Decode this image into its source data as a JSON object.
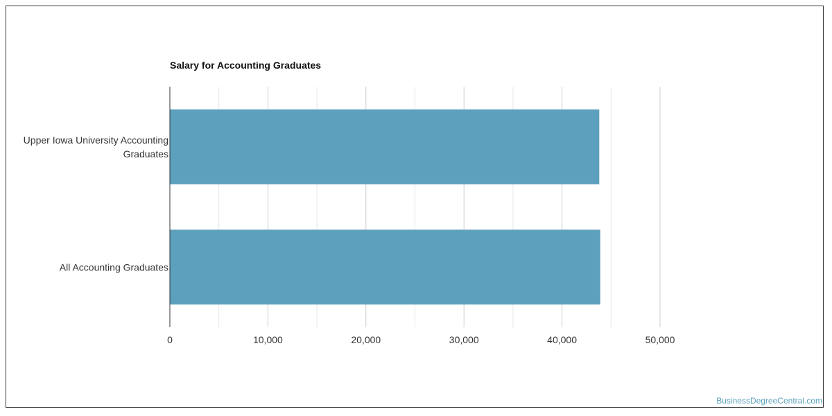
{
  "chart_data": {
    "type": "bar",
    "orientation": "horizontal",
    "title": "Salary for Accounting Graduates",
    "categories": [
      [
        "Upper Iowa University Accounting",
        "Graduates"
      ],
      [
        "All Accounting Graduates"
      ]
    ],
    "values": [
      43800,
      43900
    ],
    "xlim": [
      0,
      50000
    ],
    "x_ticks": [
      0,
      10000,
      20000,
      30000,
      40000,
      50000
    ],
    "x_tick_labels": [
      "0",
      "10,000",
      "20,000",
      "30,000",
      "40,000",
      "50,000"
    ],
    "grid": "vertical",
    "bar_color": "#5da0bd"
  },
  "watermark": {
    "text": "BusinessDegreeCentral.com",
    "color": "#5da0bd"
  }
}
